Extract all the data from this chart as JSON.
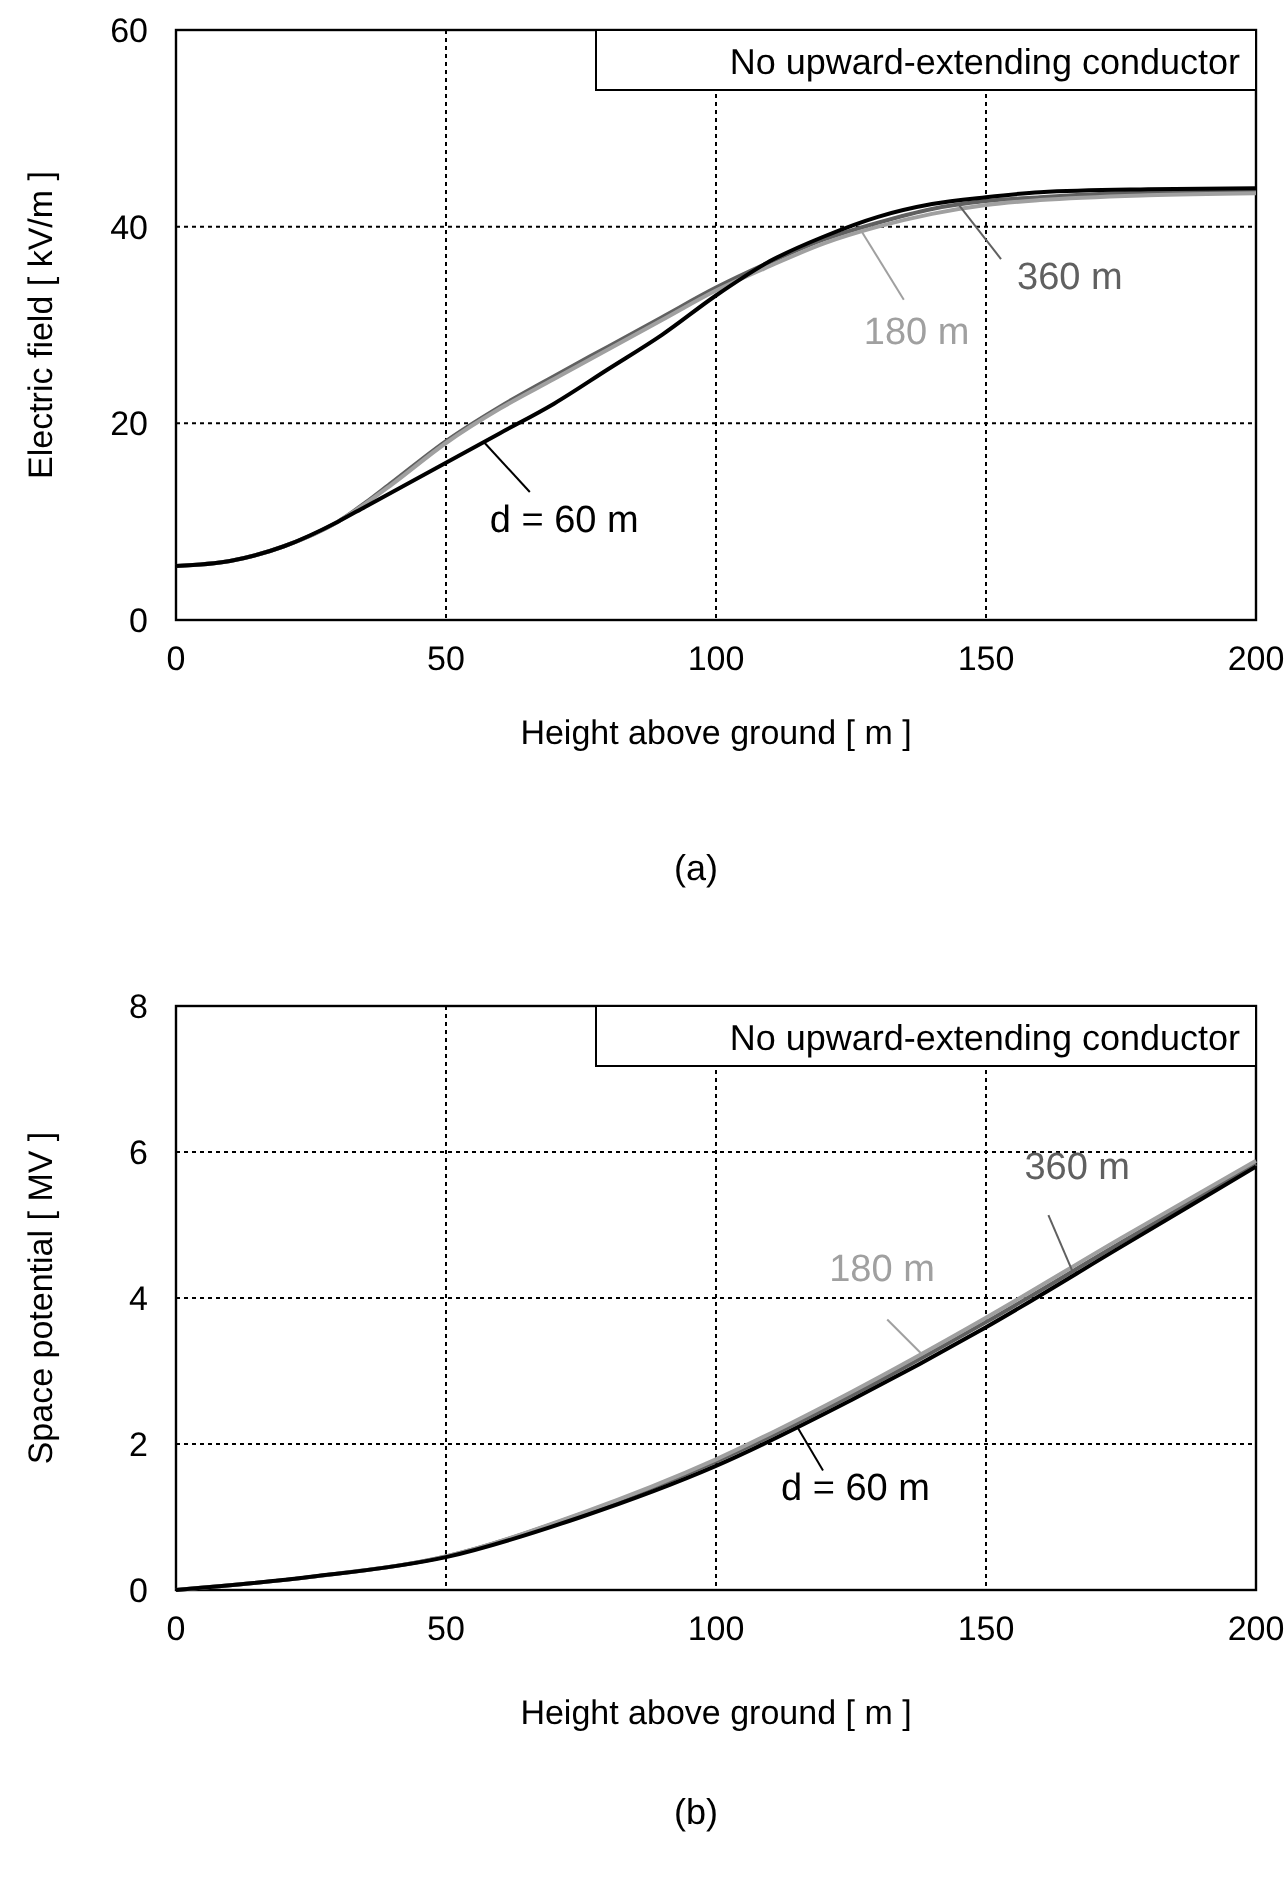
{
  "chart_data": [
    {
      "type": "line",
      "xlabel": "Height above ground [ m ]",
      "ylabel": "Electric field [ kV/m ]",
      "xlim": [
        0,
        200
      ],
      "xticks": [
        0,
        50,
        100,
        150,
        200
      ],
      "ylim": [
        0,
        60
      ],
      "yticks": [
        0,
        20,
        40,
        60
      ],
      "grid": true,
      "legend": "center",
      "line_style": "solid",
      "annotations": [
        "No upward-extending conductor",
        "(a)"
      ],
      "x": [
        0,
        10,
        20,
        30,
        35,
        40,
        50,
        60,
        70,
        80,
        90,
        100,
        110,
        120,
        130,
        140,
        150,
        160,
        180,
        200
      ],
      "series": [
        {
          "name": "d = 60 m",
          "color": "#000000",
          "values": [
            5.5,
            6,
            7.5,
            10,
            11.5,
            13,
            16,
            19,
            22,
            25.5,
            29,
            33,
            36.5,
            39,
            41,
            42.3,
            43,
            43.5,
            43.8,
            43.9
          ]
        },
        {
          "name": "180 m",
          "color": "#a0a0a0",
          "values": [
            5.5,
            6,
            7.5,
            10,
            11.8,
            13.8,
            18,
            21.5,
            24.5,
            27.5,
            30.5,
            33.5,
            36,
            38.3,
            40,
            41.3,
            42.2,
            42.7,
            43.2,
            43.4
          ]
        },
        {
          "name": "360 m",
          "color": "#606060",
          "values": [
            5.5,
            6,
            7.5,
            10,
            11.9,
            14,
            18.2,
            21.7,
            24.8,
            27.8,
            30.8,
            33.8,
            36.4,
            38.7,
            40.4,
            41.8,
            42.6,
            43,
            43.5,
            43.7
          ]
        }
      ]
    },
    {
      "type": "line",
      "xlabel": "Height above ground [ m ]",
      "ylabel": "Space potential [ MV ]",
      "xlim": [
        0,
        200
      ],
      "xticks": [
        0,
        50,
        100,
        150,
        200
      ],
      "ylim": [
        0,
        8
      ],
      "yticks": [
        0,
        2,
        4,
        6,
        8
      ],
      "grid": true,
      "legend": "center",
      "line_style": "solid",
      "annotations": [
        "No upward-extending conductor",
        "(b)"
      ],
      "x": [
        0,
        25,
        50,
        75,
        100,
        125,
        150,
        175,
        200
      ],
      "series": [
        {
          "name": "d = 60 m",
          "color": "#000000",
          "values": [
            0,
            0.18,
            0.45,
            1.0,
            1.7,
            2.6,
            3.6,
            4.7,
            5.8
          ]
        },
        {
          "name": "180 m",
          "color": "#a0a0a0",
          "values": [
            0,
            0.18,
            0.46,
            1.05,
            1.79,
            2.71,
            3.73,
            4.82,
            5.88
          ]
        },
        {
          "name": "360 m",
          "color": "#606060",
          "values": [
            0,
            0.18,
            0.46,
            1.04,
            1.76,
            2.66,
            3.67,
            4.76,
            5.84
          ]
        }
      ]
    }
  ]
}
